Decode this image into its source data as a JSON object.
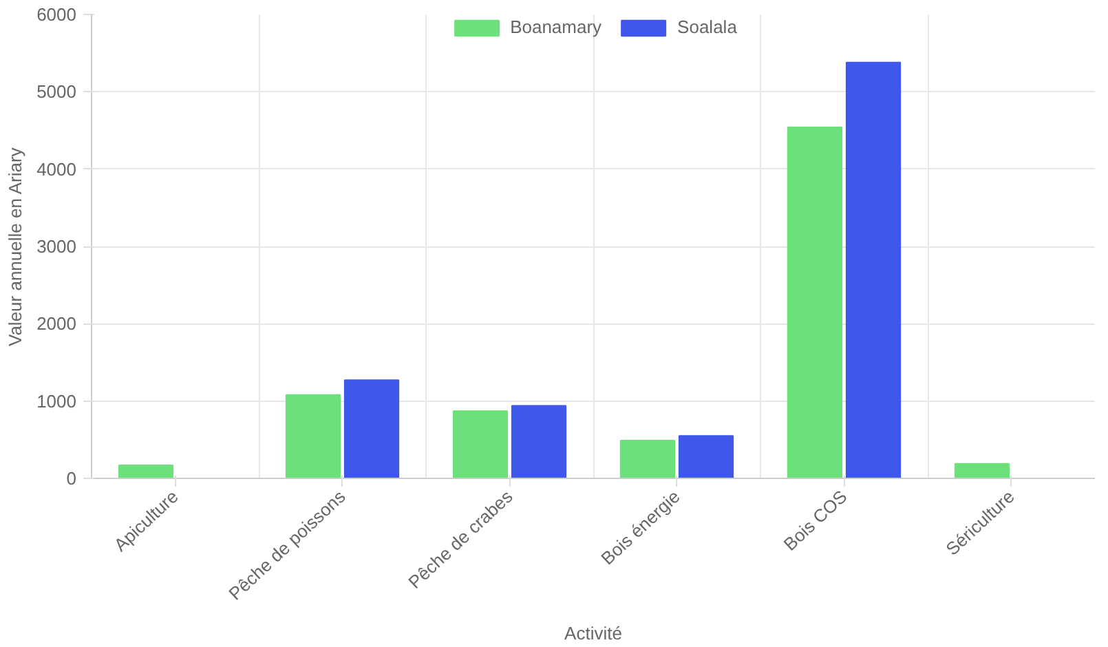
{
  "chart_data": {
    "type": "bar",
    "xlabel": "Activité",
    "ylabel": "Valeur annuelle en Ariary",
    "categories": [
      "Apiculture",
      "Pêche de poissons",
      "Pêche de crabes",
      "Bois énergie",
      "Bois COS",
      "Sériculture"
    ],
    "series": [
      {
        "name": "Boanamary",
        "color": "#6ce07a",
        "values": [
          170,
          1080,
          870,
          490,
          4540,
          190
        ]
      },
      {
        "name": "Soalala",
        "color": "#3f57ea",
        "values": [
          0,
          1270,
          940,
          550,
          5380,
          0
        ]
      }
    ],
    "ylim": [
      0,
      6000
    ],
    "yticks": [
      0,
      1000,
      2000,
      3000,
      4000,
      5000,
      6000
    ],
    "grid": true,
    "legend": "top"
  }
}
